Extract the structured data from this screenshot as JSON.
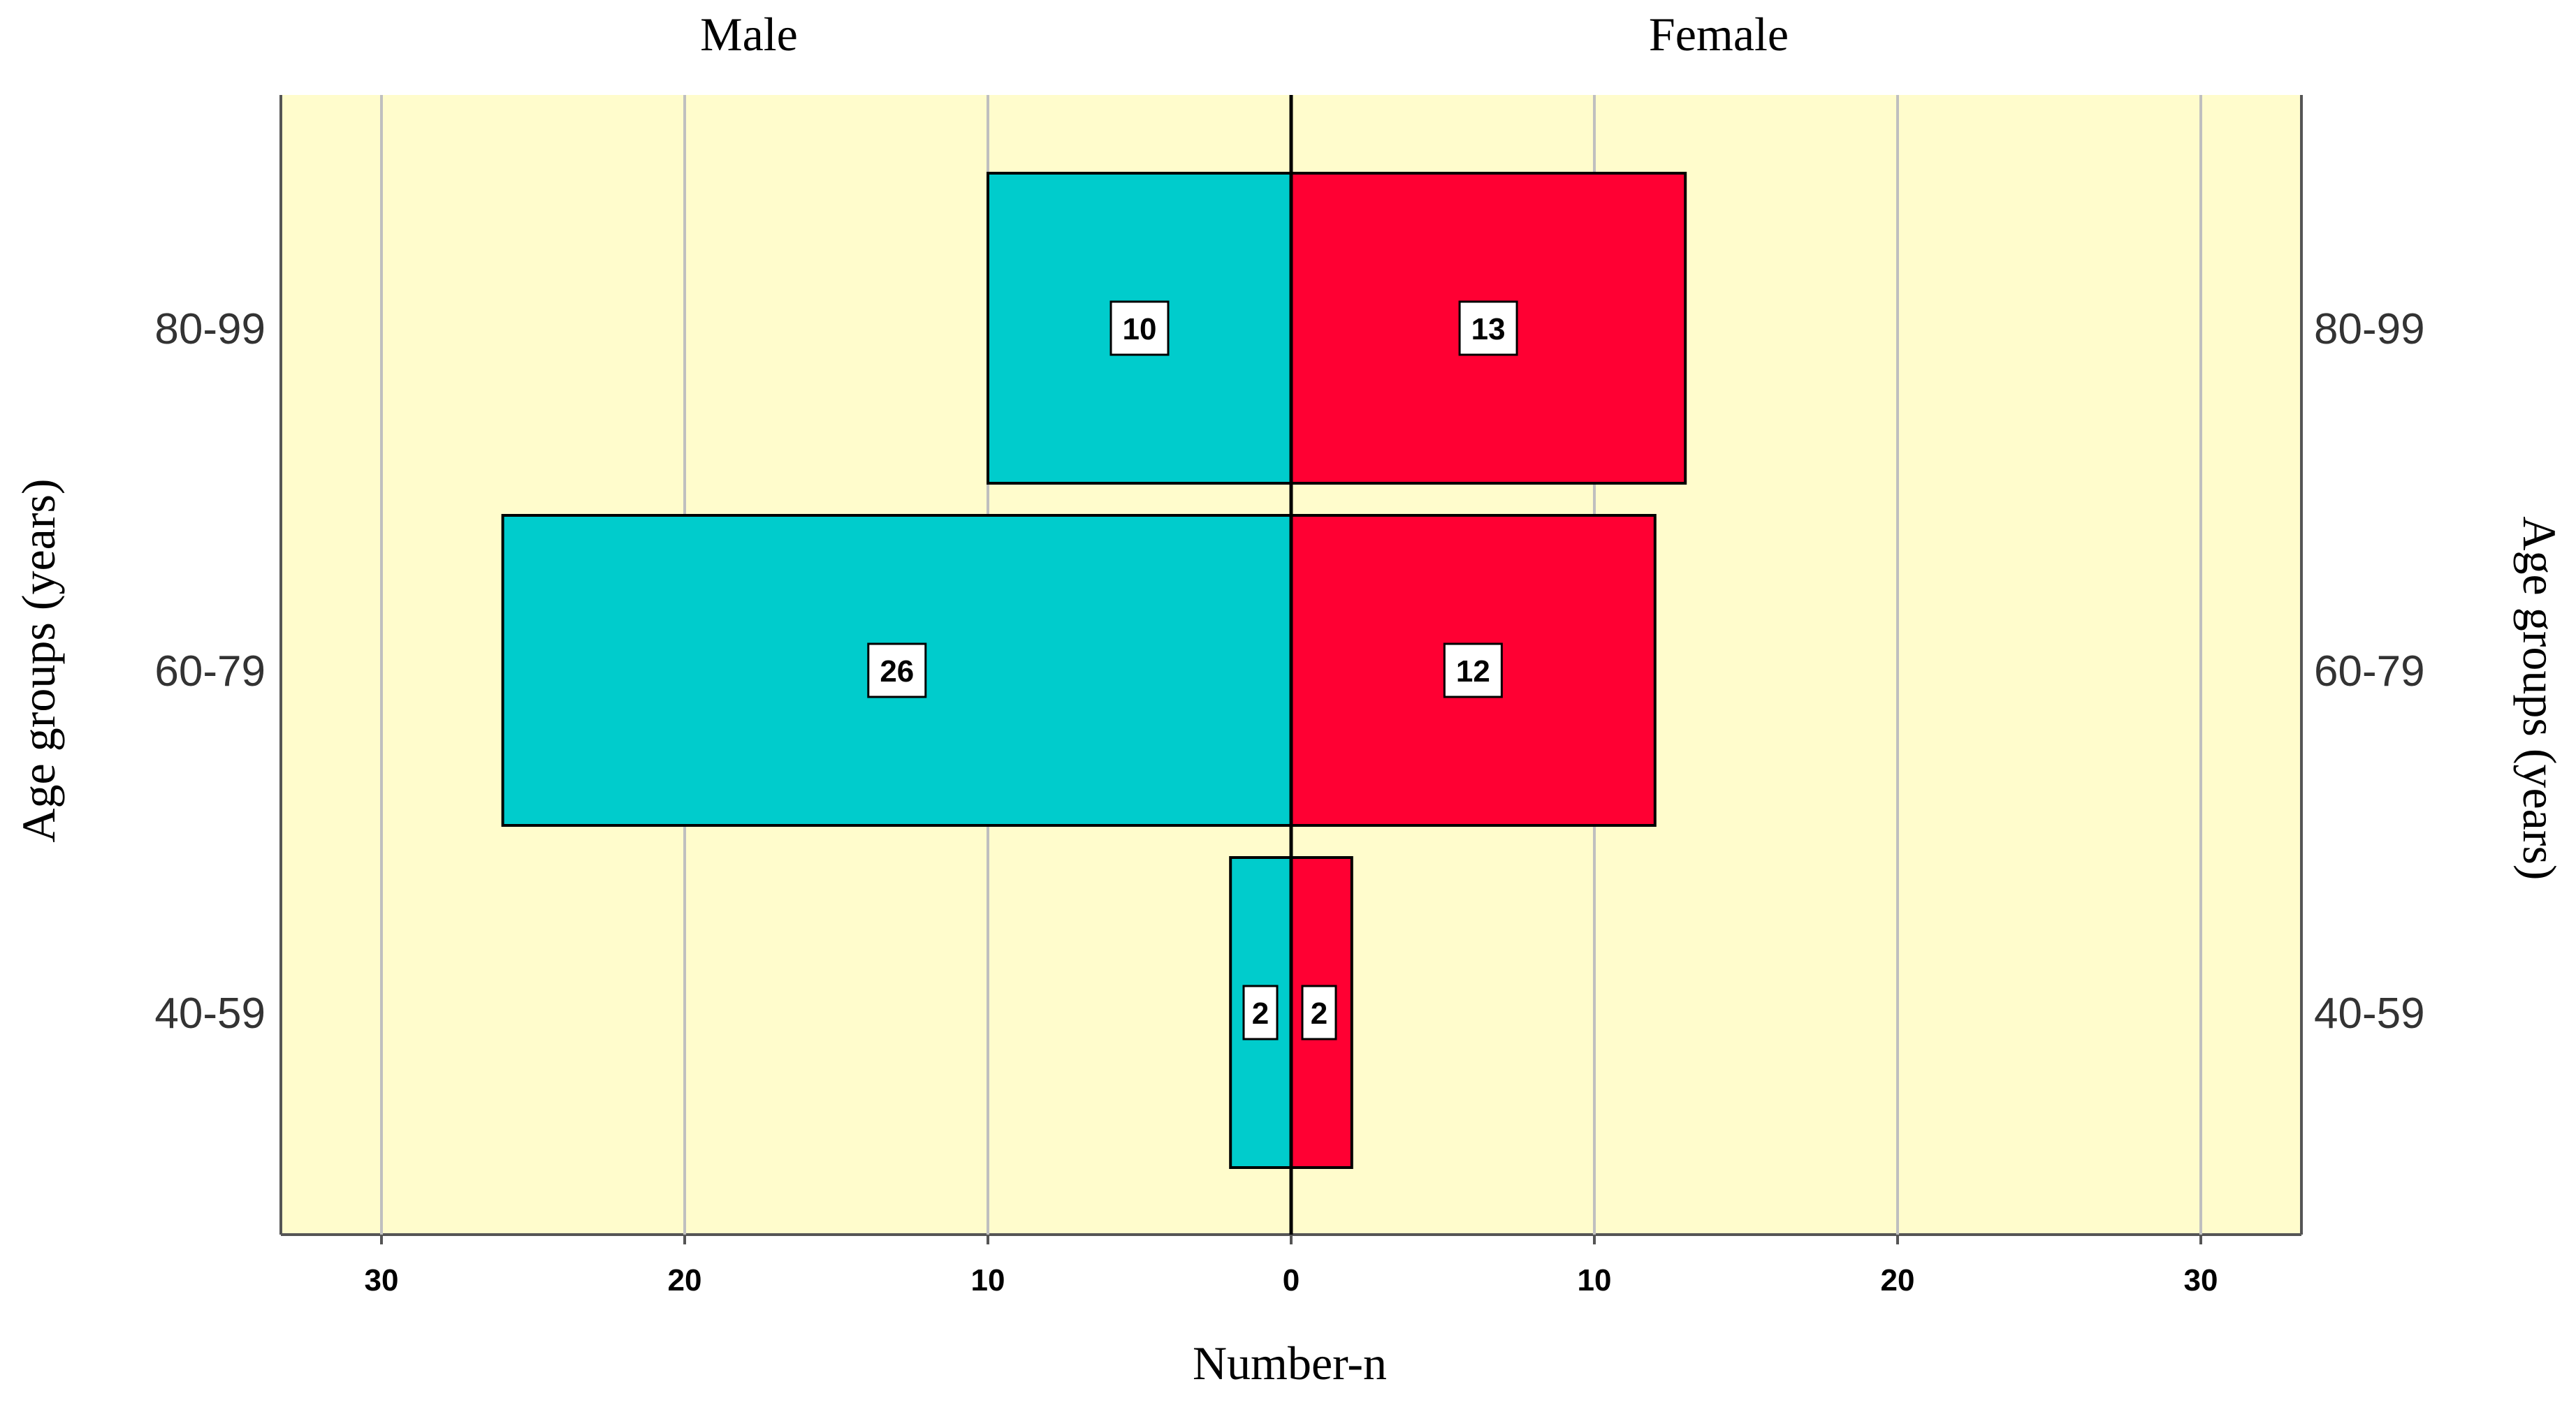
{
  "chart_data": {
    "type": "bar",
    "subtype": "population-pyramid",
    "orientation": "horizontal",
    "categories": [
      "80-99",
      "60-79",
      "40-59"
    ],
    "series": [
      {
        "name": "Male",
        "values": [
          10,
          26,
          2
        ],
        "color": "#00CCCC"
      },
      {
        "name": "Female",
        "values": [
          13,
          12,
          2
        ],
        "color": "#FF0033"
      }
    ],
    "xlabel": "Number-n",
    "ylabel": "Age groups (years)",
    "xlim": [
      -33.3,
      33.3
    ],
    "xticks": [
      -30,
      -20,
      -10,
      0,
      10,
      20,
      30
    ],
    "xtick_labels": [
      "30",
      "20",
      "10",
      "0",
      "10",
      "20",
      "30"
    ],
    "grid": true,
    "legend": "none",
    "plot_background": "#FFFCCC",
    "grid_color": "#BFBFBF"
  }
}
